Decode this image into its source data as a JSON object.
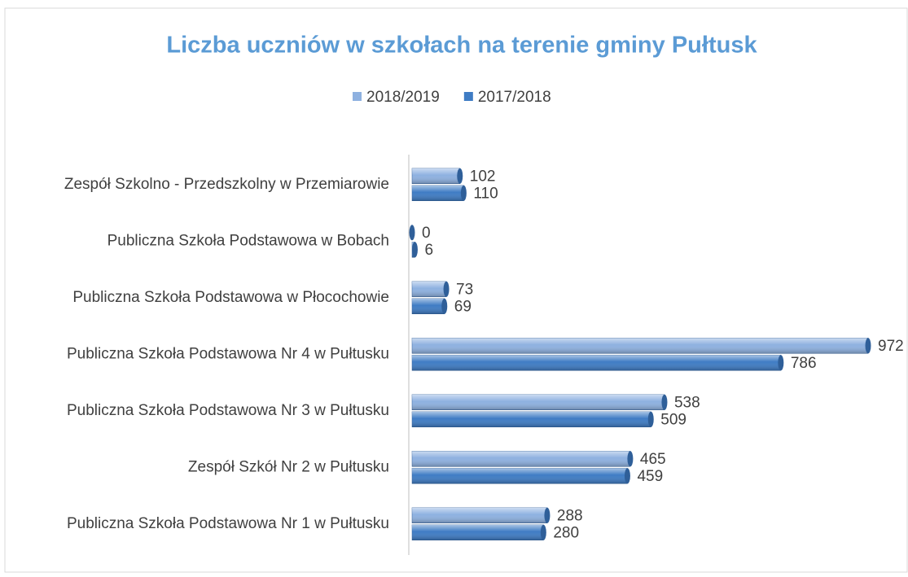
{
  "chart_data": {
    "type": "bar",
    "title": "Liczba uczniów w szkołach na terenie gminy Pułtusk",
    "categories": [
      "Zespół Szkolno - Przedszkolny w Przemiarowie",
      "Publiczna Szkoła Podstawowa w Bobach",
      "Publiczna Szkoła Podstawowa w Płocochowie",
      "Publiczna Szkoła Podstawowa Nr 4 w Pułtusku",
      "Publiczna Szkoła Podstawowa Nr 3 w Pułtusku",
      "Zespół Szkół Nr 2 w Pułtusku",
      "Publiczna Szkoła Podstawowa Nr 1 w Pułtusku"
    ],
    "series": [
      {
        "name": "2018/2019",
        "color": "#8eb1e0",
        "values": [
          102,
          0,
          73,
          972,
          538,
          465,
          288
        ]
      },
      {
        "name": "2017/2018",
        "color": "#3f7cc4",
        "values": [
          110,
          6,
          69,
          786,
          509,
          459,
          280
        ]
      }
    ],
    "legend": "top"
  }
}
